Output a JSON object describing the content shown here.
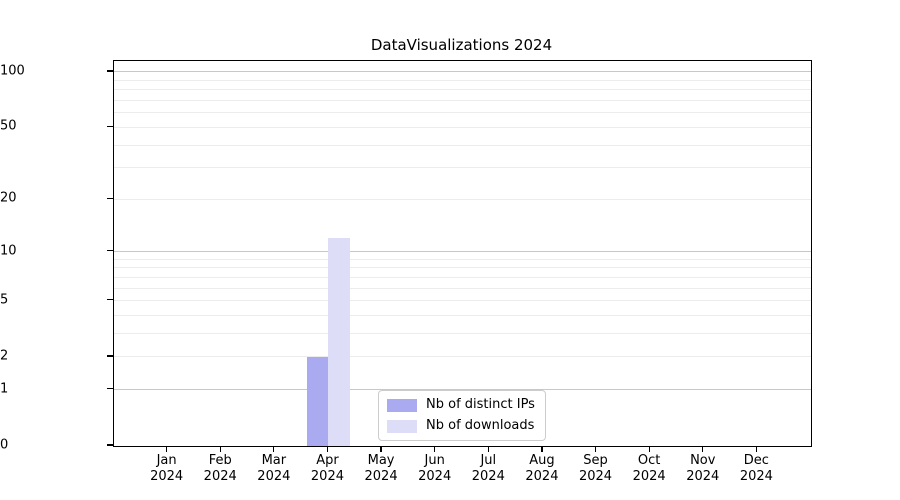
{
  "title": "DataVisualizations 2024",
  "chart_data": {
    "type": "bar",
    "title": "DataVisualizations 2024",
    "categories": [
      "Jan",
      "Feb",
      "Mar",
      "Apr",
      "May",
      "Jun",
      "Jul",
      "Aug",
      "Sep",
      "Oct",
      "Nov",
      "Dec"
    ],
    "x_tick_second_line": "2024",
    "series": [
      {
        "name": "Nb of distinct IPs",
        "color": "#aaaaf0",
        "values": [
          0,
          0,
          0,
          2,
          0,
          0,
          0,
          0,
          0,
          0,
          0,
          0
        ]
      },
      {
        "name": "Nb of downloads",
        "color": "#ddddf7",
        "values": [
          0,
          0,
          0,
          12,
          0,
          0,
          0,
          0,
          0,
          0,
          0,
          0
        ]
      }
    ],
    "yscale": "log10(1+y)",
    "ylim": [
      0,
      114.6
    ],
    "y_ticks": [
      0,
      1,
      2,
      5,
      10,
      20,
      50,
      100
    ],
    "y_major_gridlines": [
      1,
      10,
      100
    ],
    "y_minor_gridlines": [
      2,
      3,
      4,
      5,
      6,
      7,
      8,
      9,
      20,
      30,
      40,
      50,
      60,
      70,
      80,
      90
    ],
    "grid": true,
    "legend_position": "lower center",
    "colors": {
      "axis": "#000000",
      "major_grid": "#c8c8c8",
      "minor_grid": "#ececec",
      "background": "#ffffff"
    }
  }
}
